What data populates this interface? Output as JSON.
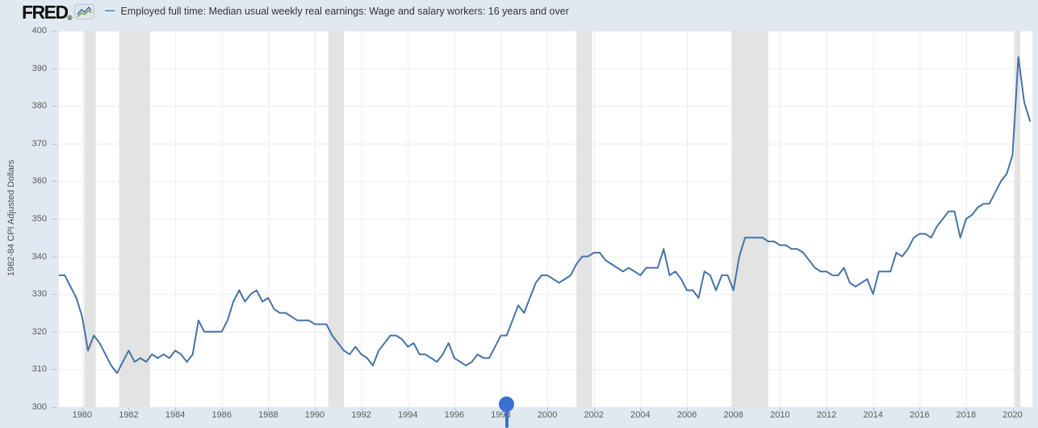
{
  "header": {
    "logo_text": "FRED",
    "logo_registered": "®",
    "legend_dash": "—",
    "series_label": "Employed full time: Median usual weekly real earnings: Wage and salary workers: 16 years and over"
  },
  "colors": {
    "page_background": "#e0e9f1",
    "plot_background": "#ffffff",
    "line": "#4572a7",
    "recession_band": "#e3e3e3",
    "gridline": "#ececec",
    "tick_mark": "#b9c2cb",
    "slider": "#3b70d1",
    "fred_icon_blue": "#4572a7",
    "fred_icon_green": "#7aa854"
  },
  "chart_data": {
    "type": "line",
    "title": "Employed full time: Median usual weekly real earnings: Wage and salary workers: 16 years and over",
    "xlabel": "",
    "ylabel": "1982-84 CPI Adjusted Dollars",
    "frequency": "quarterly",
    "start_year": 1979,
    "x_domain": [
      1979,
      2020.85
    ],
    "ylim": [
      300,
      400
    ],
    "y_ticks": [
      300,
      310,
      320,
      330,
      340,
      350,
      360,
      370,
      380,
      390,
      400
    ],
    "x_ticks": [
      1980,
      1982,
      1984,
      1986,
      1988,
      1990,
      1992,
      1994,
      1996,
      1998,
      2000,
      2002,
      2004,
      2006,
      2008,
      2010,
      2012,
      2014,
      2016,
      2018,
      2020
    ],
    "grid": true,
    "legend_position": "top",
    "values": [
      335,
      335,
      332,
      329,
      324,
      315,
      319,
      317,
      314,
      311,
      309,
      312,
      315,
      312,
      313,
      312,
      314,
      313,
      314,
      313,
      315,
      314,
      312,
      314,
      323,
      320,
      320,
      320,
      320,
      323,
      328,
      331,
      328,
      330,
      331,
      328,
      329,
      326,
      325,
      325,
      324,
      323,
      323,
      323,
      322,
      322,
      322,
      319,
      317,
      315,
      314,
      316,
      314,
      313,
      311,
      315,
      317,
      319,
      319,
      318,
      316,
      317,
      314,
      314,
      313,
      312,
      314,
      317,
      313,
      312,
      311,
      312,
      314,
      313,
      313,
      316,
      319,
      319,
      323,
      327,
      325,
      329,
      333,
      335,
      335,
      334,
      333,
      334,
      335,
      338,
      340,
      340,
      341,
      341,
      339,
      338,
      337,
      336,
      337,
      336,
      335,
      337,
      337,
      337,
      342,
      335,
      336,
      334,
      331,
      331,
      329,
      336,
      335,
      331,
      335,
      335,
      331,
      340,
      345,
      345,
      345,
      345,
      344,
      344,
      343,
      343,
      342,
      342,
      341,
      339,
      337,
      336,
      336,
      335,
      335,
      337,
      333,
      332,
      333,
      334,
      330,
      336,
      336,
      336,
      341,
      340,
      342,
      345,
      346,
      346,
      345,
      348,
      350,
      352,
      352,
      345,
      350,
      351,
      353,
      354,
      354,
      357,
      360,
      362,
      367,
      393,
      381,
      376
    ],
    "recessions": [
      [
        1980.083,
        1980.583
      ],
      [
        1981.583,
        1982.917
      ],
      [
        1990.583,
        1991.25
      ],
      [
        2001.25,
        2001.917
      ],
      [
        2007.917,
        2009.5
      ],
      [
        2020.083,
        2020.333
      ]
    ],
    "slider_year": 1998.25
  }
}
